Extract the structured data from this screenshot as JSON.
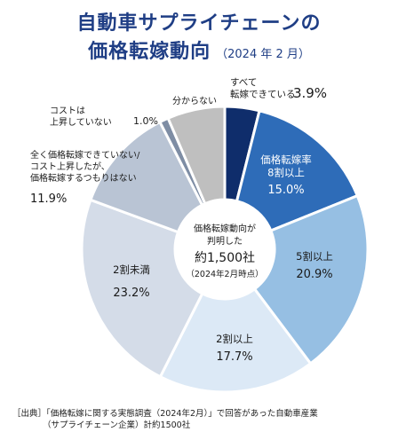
{
  "title_line1": "自動車サプライチェーンの",
  "title_line2": "価格転嫁動向",
  "title_sub": "（2024 年 2 月）",
  "center": {
    "line1": "価格転嫁動向が",
    "line2": "判明した",
    "line3": "約1,500社",
    "line4": "（2024年2月時点）"
  },
  "source": {
    "prefix": "［出典］",
    "line1": "「価格転嫁に関する実態調査（2024年2月）」で回答があった自動車産業",
    "line2": "（サプライチェーン企業）計約1500社"
  },
  "chart_data": {
    "type": "pie",
    "donut": true,
    "start": "12 o'clock, clockwise",
    "slices": [
      {
        "label": "すべて転嫁できている",
        "value": 3.9,
        "display": "3.9%",
        "color": "#0f2d6b"
      },
      {
        "label": "価格転嫁率8割以上",
        "value": 15.0,
        "display": "15.0%",
        "color": "#2e6cb8"
      },
      {
        "label": "5割以上",
        "value": 20.9,
        "display": "20.9%",
        "color": "#96bfe3"
      },
      {
        "label": "2割以上",
        "value": 17.7,
        "display": "17.7%",
        "color": "#dce9f6"
      },
      {
        "label": "2割未満",
        "value": 23.2,
        "display": "23.2%",
        "color": "#d4dce8"
      },
      {
        "label": "全く価格転嫁できていない/コスト上昇したが、価格転嫁するつもりはない",
        "value": 11.9,
        "display": "11.9%",
        "color": "#b9c4d4"
      },
      {
        "label": "コストは上昇していない",
        "value": 1.0,
        "display": "1.0%",
        "color": "#7e8da4"
      },
      {
        "label": "分からない",
        "value": 6.5,
        "display": "",
        "color": "#bfbfbf"
      }
    ],
    "label_text": {
      "s0": [
        "すべて",
        "転嫁できている"
      ],
      "s1": [
        "価格転嫁率",
        "8割以上"
      ],
      "s2": [
        "5割以上"
      ],
      "s3": [
        "2割以上"
      ],
      "s4": [
        "2割未満"
      ],
      "s5": [
        "全く価格転嫁できていない/",
        "コスト上昇したが、",
        "価格転嫁するつもりはない"
      ],
      "s6": [
        "コストは",
        "上昇していない"
      ],
      "s7": [
        "分からない"
      ]
    }
  }
}
